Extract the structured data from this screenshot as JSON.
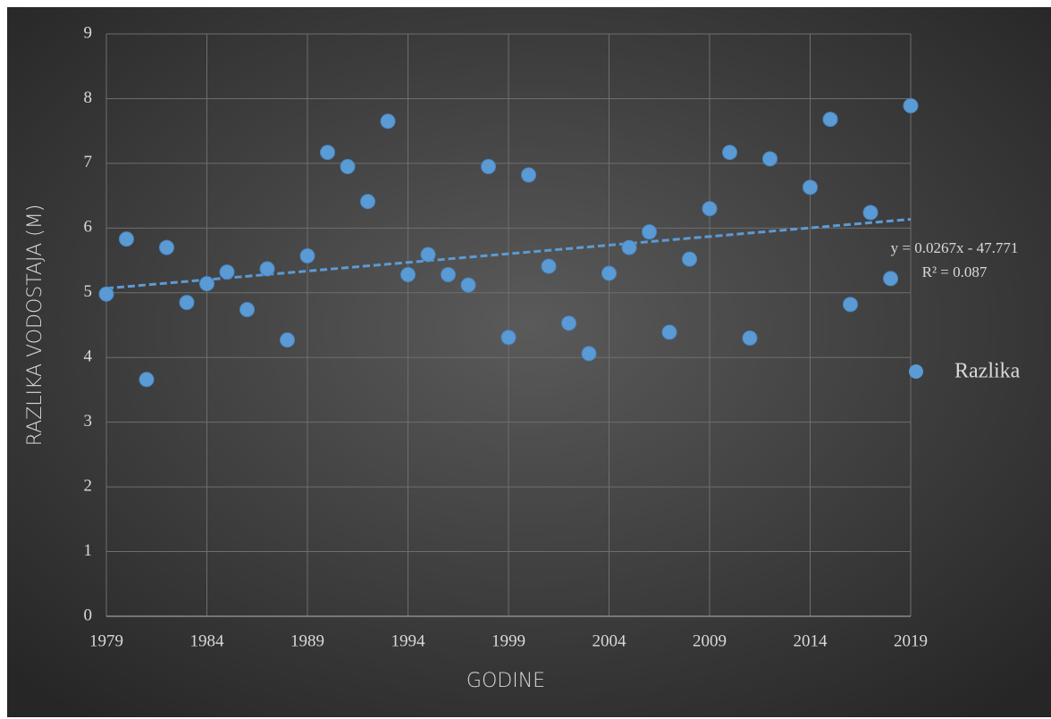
{
  "chart_data": {
    "type": "scatter",
    "xlabel": "GODINE",
    "ylabel": "RAZLIKA VODOSTAJA (M)",
    "series": [
      {
        "name": "Razlika",
        "color": "#5b9bd5",
        "x": [
          1979,
          1980,
          1981,
          1982,
          1983,
          1984,
          1985,
          1986,
          1987,
          1988,
          1989,
          1990,
          1991,
          1992,
          1993,
          1994,
          1995,
          1996,
          1997,
          1998,
          1999,
          2000,
          2001,
          2002,
          2003,
          2004,
          2005,
          2006,
          2007,
          2008,
          2009,
          2010,
          2011,
          2012,
          2014,
          2015,
          2016,
          2017,
          2018,
          2019
        ],
        "values": [
          4.98,
          5.83,
          3.66,
          5.7,
          4.85,
          5.14,
          5.32,
          4.74,
          5.37,
          4.27,
          5.57,
          7.17,
          6.95,
          6.41,
          7.65,
          5.28,
          5.59,
          5.28,
          5.12,
          6.95,
          4.31,
          6.82,
          5.41,
          4.53,
          4.06,
          5.3,
          5.7,
          5.94,
          4.39,
          5.52,
          6.3,
          7.17,
          4.3,
          7.07,
          6.63,
          7.68,
          4.82,
          6.24,
          5.22,
          7.89
        ]
      }
    ],
    "trendline": {
      "slope": 0.0267,
      "intercept": -47.771,
      "equation": "y = 0.0267x - 47.771",
      "r2": "R² = 0.087"
    },
    "xlim": [
      1979,
      2019
    ],
    "xticks": [
      1979,
      1984,
      1989,
      1994,
      1999,
      2004,
      2009,
      2014,
      2019
    ],
    "ylim": [
      0,
      9
    ],
    "yticks": [
      0,
      1,
      2,
      3,
      4,
      5,
      6,
      7,
      8,
      9
    ],
    "grid": true,
    "legend": "right"
  }
}
